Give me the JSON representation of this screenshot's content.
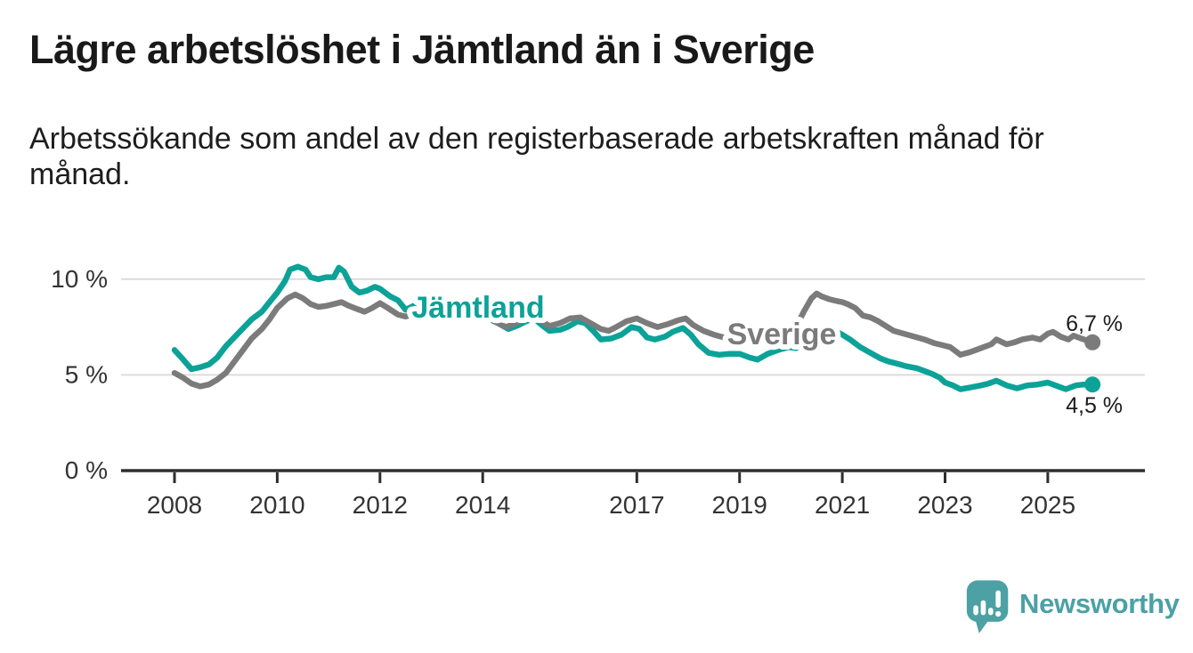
{
  "header": {
    "title": "Lägre arbetslöshet i Jämtland än i Sverige",
    "subtitle": "Arbetssökande som andel av den registerbaserade arbetskraften månad för månad."
  },
  "chart_data": {
    "type": "line",
    "title": "Lägre arbetslöshet i Jämtland än i Sverige",
    "x_axis": {
      "ticks": [
        2008,
        2010,
        2012,
        2014,
        2017,
        2019,
        2021,
        2023,
        2025
      ],
      "tick_labels": [
        "2008",
        "2010",
        "2012",
        "2014",
        "2017",
        "2019",
        "2021",
        "2023",
        "2025"
      ],
      "range": [
        2007,
        2026.3
      ]
    },
    "y_axis": {
      "ticks": [
        0,
        5,
        10
      ],
      "tick_labels": [
        "0 %",
        "5 %",
        "10 %"
      ],
      "range": [
        0,
        11.6
      ],
      "unit": "%"
    },
    "grid": "horizontal",
    "legend_position": "inline-labels",
    "series": [
      {
        "name": "Jämtland",
        "color": "#0ca298",
        "end_value": 4.5,
        "end_label": "4,5 %",
        "end_label_side": "below",
        "label_pos": {
          "year": 2013.91,
          "value": 8.55
        },
        "points": [
          [
            2008.0,
            6.3
          ],
          [
            2008.17,
            5.8
          ],
          [
            2008.33,
            5.3
          ],
          [
            2008.5,
            5.4
          ],
          [
            2008.67,
            5.55
          ],
          [
            2008.83,
            5.9
          ],
          [
            2009.0,
            6.5
          ],
          [
            2009.25,
            7.2
          ],
          [
            2009.5,
            7.9
          ],
          [
            2009.7,
            8.3
          ],
          [
            2009.85,
            8.8
          ],
          [
            2010.0,
            9.3
          ],
          [
            2010.15,
            9.9
          ],
          [
            2010.25,
            10.5
          ],
          [
            2010.4,
            10.65
          ],
          [
            2010.55,
            10.5
          ],
          [
            2010.65,
            10.1
          ],
          [
            2010.8,
            10.0
          ],
          [
            2010.95,
            10.1
          ],
          [
            2011.1,
            10.1
          ],
          [
            2011.2,
            10.6
          ],
          [
            2011.3,
            10.4
          ],
          [
            2011.45,
            9.6
          ],
          [
            2011.6,
            9.3
          ],
          [
            2011.75,
            9.4
          ],
          [
            2011.9,
            9.6
          ],
          [
            2012.0,
            9.5
          ],
          [
            2012.2,
            9.1
          ],
          [
            2012.35,
            8.9
          ],
          [
            2012.5,
            8.4
          ],
          [
            2012.65,
            8.6
          ],
          [
            2012.8,
            8.6
          ],
          [
            2013.0,
            8.4
          ],
          [
            2013.2,
            8.1
          ],
          [
            2013.35,
            7.95
          ],
          [
            2013.5,
            8.1
          ],
          [
            2013.7,
            8.2
          ],
          [
            2013.9,
            8.1
          ],
          [
            2014.1,
            7.95
          ],
          [
            2014.3,
            7.7
          ],
          [
            2014.5,
            7.4
          ],
          [
            2014.7,
            7.6
          ],
          [
            2014.85,
            7.8
          ],
          [
            2015.0,
            7.95
          ],
          [
            2015.15,
            7.6
          ],
          [
            2015.3,
            7.3
          ],
          [
            2015.5,
            7.35
          ],
          [
            2015.65,
            7.5
          ],
          [
            2015.85,
            7.8
          ],
          [
            2016.0,
            7.7
          ],
          [
            2016.15,
            7.3
          ],
          [
            2016.3,
            6.85
          ],
          [
            2016.5,
            6.9
          ],
          [
            2016.7,
            7.1
          ],
          [
            2016.9,
            7.5
          ],
          [
            2017.05,
            7.4
          ],
          [
            2017.2,
            6.95
          ],
          [
            2017.35,
            6.85
          ],
          [
            2017.55,
            7.0
          ],
          [
            2017.7,
            7.25
          ],
          [
            2017.9,
            7.45
          ],
          [
            2018.05,
            7.1
          ],
          [
            2018.2,
            6.6
          ],
          [
            2018.4,
            6.15
          ],
          [
            2018.6,
            6.05
          ],
          [
            2018.8,
            6.1
          ],
          [
            2019.0,
            6.1
          ],
          [
            2019.2,
            5.9
          ],
          [
            2019.35,
            5.8
          ],
          [
            2019.55,
            6.1
          ],
          [
            2019.75,
            6.3
          ],
          [
            2019.95,
            6.45
          ],
          [
            2020.1,
            6.4
          ],
          [
            2020.3,
            6.7
          ],
          [
            2020.5,
            7.05
          ],
          [
            2020.7,
            7.3
          ],
          [
            2020.85,
            7.3
          ],
          [
            2021.0,
            7.1
          ],
          [
            2021.15,
            6.85
          ],
          [
            2021.35,
            6.45
          ],
          [
            2021.55,
            6.15
          ],
          [
            2021.75,
            5.85
          ],
          [
            2021.9,
            5.7
          ],
          [
            2022.05,
            5.6
          ],
          [
            2022.25,
            5.45
          ],
          [
            2022.45,
            5.35
          ],
          [
            2022.6,
            5.2
          ],
          [
            2022.75,
            5.05
          ],
          [
            2022.9,
            4.85
          ],
          [
            2023.0,
            4.6
          ],
          [
            2023.15,
            4.45
          ],
          [
            2023.3,
            4.25
          ],
          [
            2023.5,
            4.35
          ],
          [
            2023.7,
            4.45
          ],
          [
            2023.85,
            4.55
          ],
          [
            2024.0,
            4.7
          ],
          [
            2024.2,
            4.45
          ],
          [
            2024.4,
            4.3
          ],
          [
            2024.6,
            4.45
          ],
          [
            2024.8,
            4.5
          ],
          [
            2025.0,
            4.6
          ],
          [
            2025.2,
            4.4
          ],
          [
            2025.35,
            4.25
          ],
          [
            2025.55,
            4.45
          ],
          [
            2025.7,
            4.5
          ],
          [
            2025.87,
            4.5
          ]
        ]
      },
      {
        "name": "Sverige",
        "color": "#7b7b7b",
        "end_value": 6.7,
        "end_label": "6,7 %",
        "end_label_side": "above",
        "label_pos": {
          "year": 2019.82,
          "value": 7.16
        },
        "points": [
          [
            2008.0,
            5.1
          ],
          [
            2008.17,
            4.85
          ],
          [
            2008.33,
            4.55
          ],
          [
            2008.5,
            4.4
          ],
          [
            2008.67,
            4.5
          ],
          [
            2008.83,
            4.75
          ],
          [
            2009.0,
            5.1
          ],
          [
            2009.25,
            6.0
          ],
          [
            2009.5,
            6.9
          ],
          [
            2009.7,
            7.4
          ],
          [
            2009.85,
            7.9
          ],
          [
            2010.0,
            8.5
          ],
          [
            2010.2,
            9.0
          ],
          [
            2010.35,
            9.2
          ],
          [
            2010.5,
            9.0
          ],
          [
            2010.65,
            8.7
          ],
          [
            2010.8,
            8.55
          ],
          [
            2010.95,
            8.6
          ],
          [
            2011.1,
            8.7
          ],
          [
            2011.25,
            8.8
          ],
          [
            2011.4,
            8.6
          ],
          [
            2011.55,
            8.45
          ],
          [
            2011.7,
            8.3
          ],
          [
            2011.85,
            8.5
          ],
          [
            2012.0,
            8.75
          ],
          [
            2012.15,
            8.5
          ],
          [
            2012.35,
            8.15
          ],
          [
            2012.5,
            8.05
          ],
          [
            2012.7,
            8.2
          ],
          [
            2012.9,
            8.3
          ],
          [
            2013.1,
            8.25
          ],
          [
            2013.3,
            8.15
          ],
          [
            2013.5,
            8.1
          ],
          [
            2013.7,
            8.15
          ],
          [
            2013.9,
            8.05
          ],
          [
            2014.1,
            8.0
          ],
          [
            2014.3,
            7.7
          ],
          [
            2014.45,
            7.5
          ],
          [
            2014.6,
            7.65
          ],
          [
            2014.8,
            7.9
          ],
          [
            2015.0,
            8.1
          ],
          [
            2015.15,
            7.8
          ],
          [
            2015.3,
            7.55
          ],
          [
            2015.5,
            7.7
          ],
          [
            2015.7,
            7.95
          ],
          [
            2015.9,
            8.0
          ],
          [
            2016.1,
            7.7
          ],
          [
            2016.3,
            7.4
          ],
          [
            2016.45,
            7.3
          ],
          [
            2016.6,
            7.5
          ],
          [
            2016.8,
            7.8
          ],
          [
            2017.0,
            7.95
          ],
          [
            2017.2,
            7.7
          ],
          [
            2017.4,
            7.5
          ],
          [
            2017.6,
            7.65
          ],
          [
            2017.8,
            7.85
          ],
          [
            2017.95,
            7.95
          ],
          [
            2018.1,
            7.6
          ],
          [
            2018.3,
            7.3
          ],
          [
            2018.5,
            7.1
          ],
          [
            2018.7,
            6.95
          ],
          [
            2018.9,
            6.9
          ],
          [
            2019.1,
            6.9
          ],
          [
            2019.3,
            6.85
          ],
          [
            2019.5,
            6.9
          ],
          [
            2019.7,
            6.95
          ],
          [
            2019.9,
            7.0
          ],
          [
            2020.1,
            7.5
          ],
          [
            2020.25,
            8.3
          ],
          [
            2020.4,
            9.0
          ],
          [
            2020.5,
            9.25
          ],
          [
            2020.6,
            9.1
          ],
          [
            2020.75,
            8.95
          ],
          [
            2020.9,
            8.85
          ],
          [
            2021.0,
            8.8
          ],
          [
            2021.1,
            8.7
          ],
          [
            2021.25,
            8.5
          ],
          [
            2021.4,
            8.1
          ],
          [
            2021.55,
            8.0
          ],
          [
            2021.7,
            7.8
          ],
          [
            2021.85,
            7.55
          ],
          [
            2022.0,
            7.3
          ],
          [
            2022.2,
            7.15
          ],
          [
            2022.4,
            7.0
          ],
          [
            2022.6,
            6.85
          ],
          [
            2022.8,
            6.65
          ],
          [
            2022.95,
            6.55
          ],
          [
            2023.1,
            6.45
          ],
          [
            2023.3,
            6.05
          ],
          [
            2023.5,
            6.2
          ],
          [
            2023.75,
            6.45
          ],
          [
            2023.9,
            6.6
          ],
          [
            2024.0,
            6.85
          ],
          [
            2024.2,
            6.6
          ],
          [
            2024.35,
            6.7
          ],
          [
            2024.5,
            6.85
          ],
          [
            2024.7,
            6.95
          ],
          [
            2024.85,
            6.85
          ],
          [
            2025.0,
            7.15
          ],
          [
            2025.1,
            7.25
          ],
          [
            2025.25,
            7.0
          ],
          [
            2025.4,
            6.85
          ],
          [
            2025.5,
            7.05
          ],
          [
            2025.65,
            6.9
          ],
          [
            2025.87,
            6.7
          ]
        ]
      }
    ],
    "colors": {
      "grid": "#dcdcdc",
      "axis": "#2e2e2e",
      "tick_text": "#333333"
    }
  },
  "branding": {
    "logo_text": "Newsworthy",
    "logo_color": "#4ba1a4",
    "logo_icon": "speech-bubble-bar-chart-icon"
  }
}
